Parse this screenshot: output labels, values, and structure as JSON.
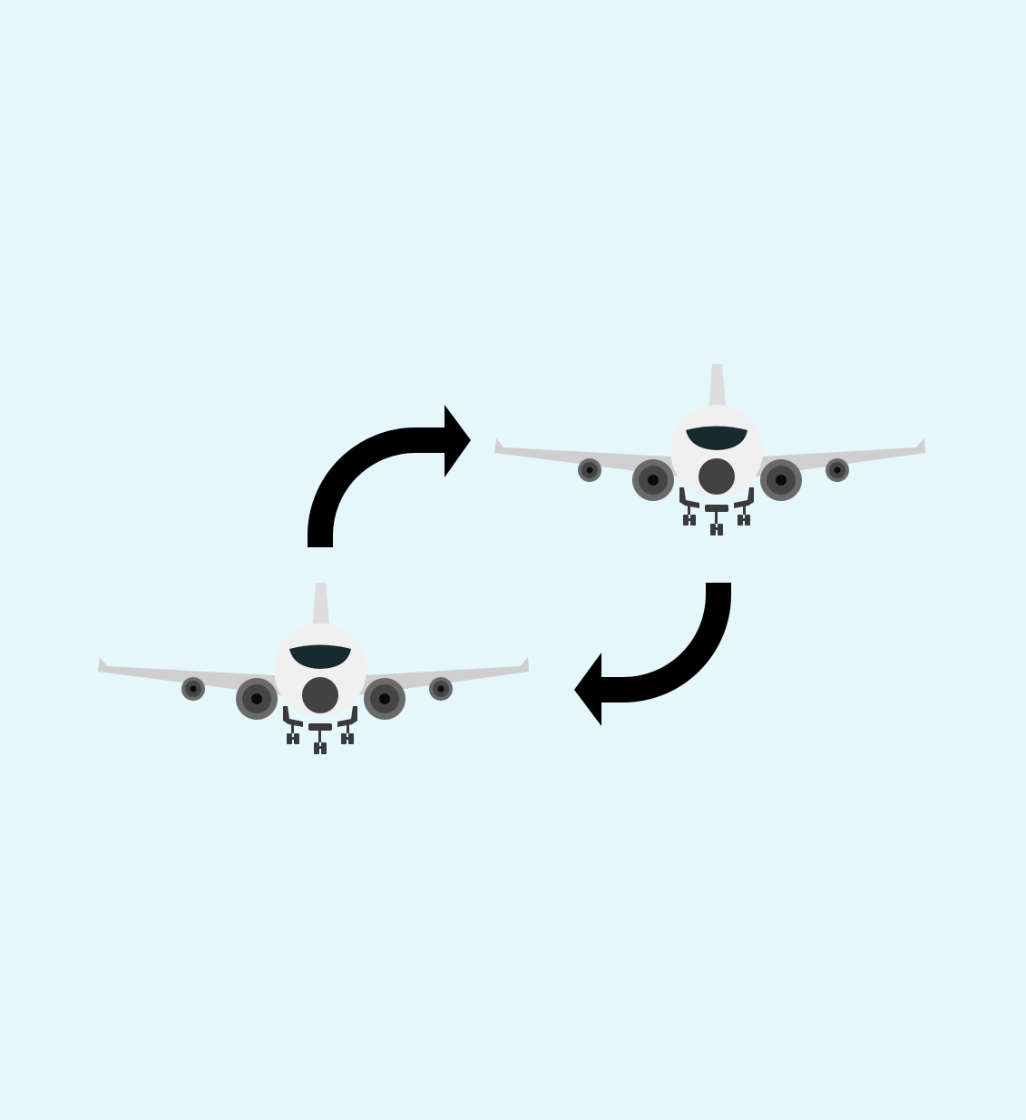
{
  "colors": {
    "background": "#e5f6fd",
    "fuselage": "#f0f0f0",
    "wing": "#cfcfcf",
    "wing_tip": "#bdbdbd",
    "tail_fin": "#dddddd",
    "cockpit_window": "#172a30",
    "engine_outer": "#6a6a6a",
    "engine_inner": "#454545",
    "engine_core": "#0a0a0a",
    "nose_dark": "#424242",
    "landing_gear": "#3a3a3a",
    "arrow": "#000000"
  },
  "diagram": {
    "nodes": [
      {
        "name": "airplane-1",
        "icon": "airplane-front-view-icon"
      },
      {
        "name": "airplane-2",
        "icon": "airplane-front-view-icon"
      }
    ],
    "edges": [
      {
        "from": "airplane-1",
        "to": "airplane-2",
        "icon": "curved-arrow-right-icon"
      },
      {
        "from": "airplane-2",
        "to": "airplane-1",
        "icon": "curved-arrow-left-icon"
      }
    ]
  }
}
